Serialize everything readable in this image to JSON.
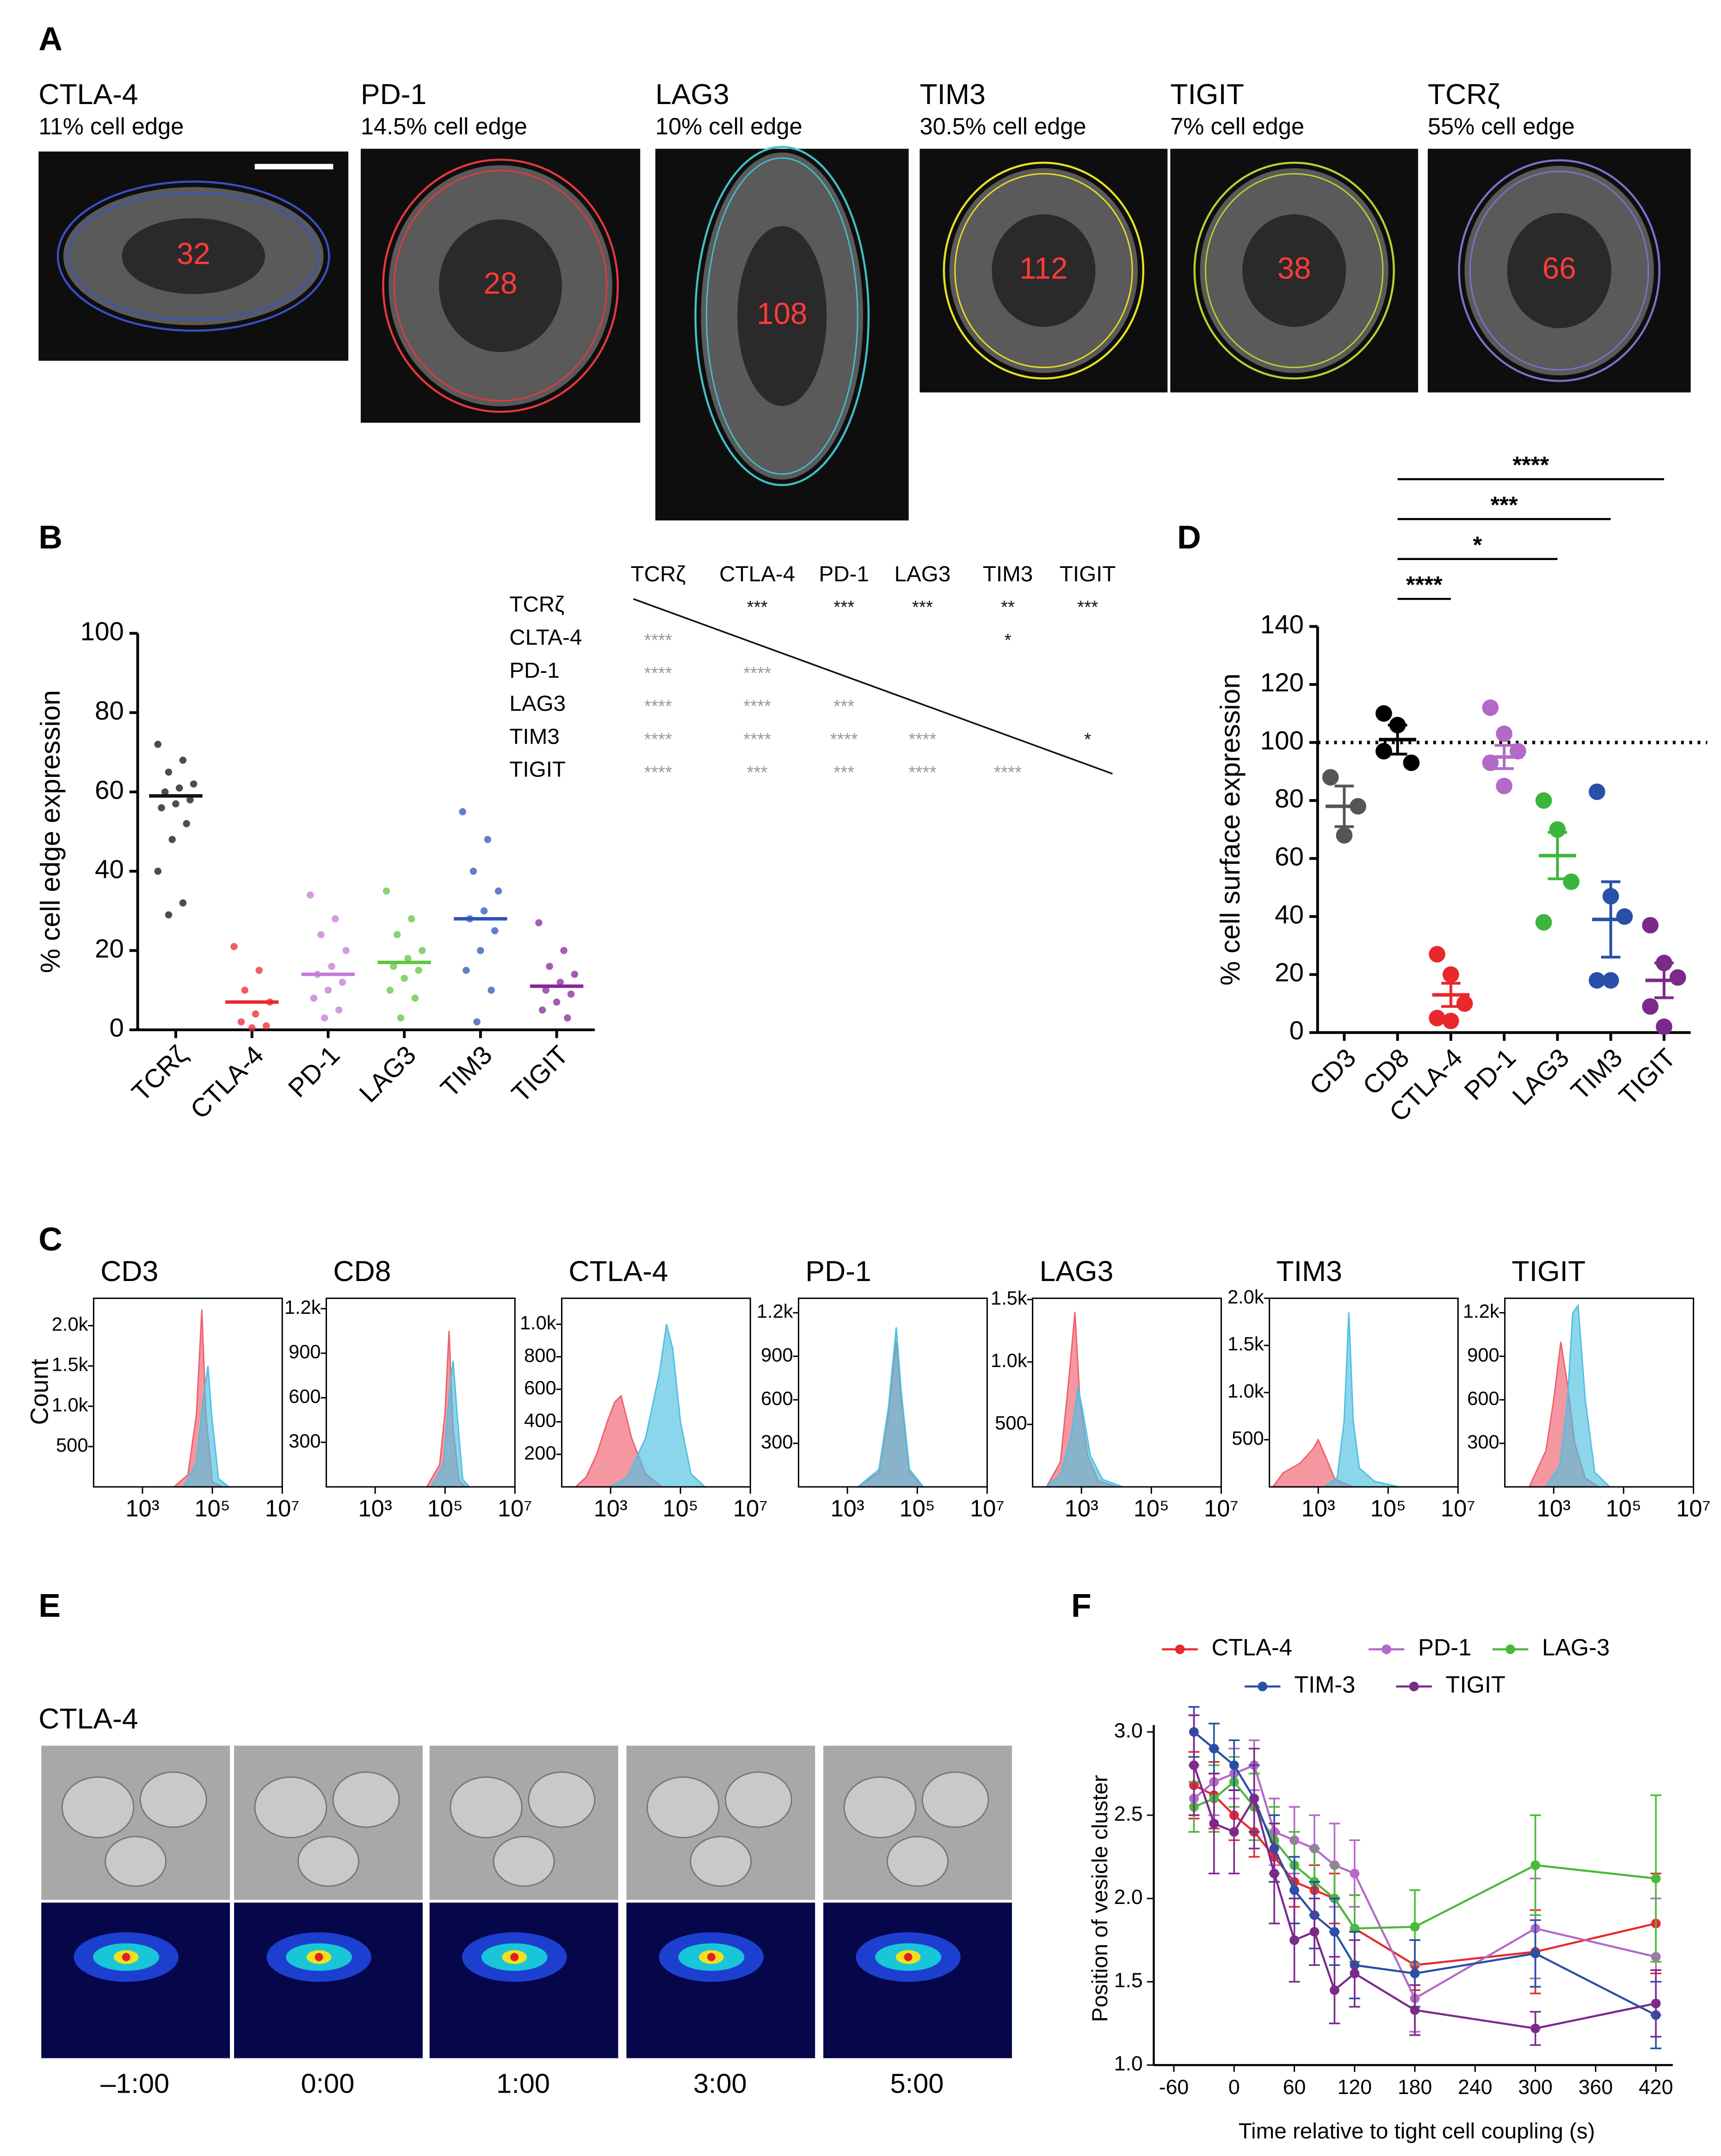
{
  "panel_labels": [
    "A",
    "B",
    "C",
    "D",
    "E",
    "F"
  ],
  "panel_a": {
    "cells": [
      {
        "name": "CTLA-4",
        "edge": "11% cell edge",
        "count": "32"
      },
      {
        "name": "PD-1",
        "edge": "14.5% cell edge",
        "count": "28"
      },
      {
        "name": "LAG3",
        "edge": "10% cell edge",
        "count": "108"
      },
      {
        "name": "TIM3",
        "edge": "30.5% cell edge",
        "count": "112"
      },
      {
        "name": "TIGIT",
        "edge": "7% cell edge",
        "count": "38"
      },
      {
        "name": "TCRζ",
        "edge": "55% cell edge",
        "count": "66"
      }
    ]
  },
  "stats_table": {
    "header": [
      "TCRζ",
      "CTLA-4",
      "PD-1",
      "LAG3",
      "TIM3",
      "TIGIT"
    ],
    "rows": [
      {
        "label": "TCRζ",
        "cells": [
          null,
          "***",
          "***",
          "***",
          "**",
          "***"
        ]
      },
      {
        "label": "CLTA-4",
        "cells": [
          "****",
          null,
          null,
          null,
          "*",
          null
        ]
      },
      {
        "label": "PD-1",
        "cells": [
          "****",
          "****",
          null,
          null,
          null,
          null
        ]
      },
      {
        "label": "LAG3",
        "cells": [
          "****",
          "****",
          "***",
          null,
          null,
          null
        ]
      },
      {
        "label": "TIM3",
        "cells": [
          "****",
          "****",
          "****",
          "****",
          null,
          "*"
        ]
      },
      {
        "label": "TIGIT",
        "cells": [
          "****",
          "***",
          "***",
          "****",
          "****",
          null
        ]
      }
    ]
  },
  "panel_e": {
    "label": "CTLA-4",
    "times": [
      "–1:00",
      "0:00",
      "1:00",
      "3:00",
      "5:00"
    ]
  },
  "chart_data": [
    {
      "type": "dot",
      "ylabel": "% cell edge expression",
      "categories": [
        "TCRζ",
        "CTLA-4",
        "PD-1",
        "LAG3",
        "TIM3",
        "TIGIT"
      ],
      "colors": [
        "#111111",
        "#e8282d",
        "#c47ad4",
        "#62c440",
        "#2c55b5",
        "#86279a"
      ],
      "values": [
        59,
        7,
        14,
        17,
        28,
        11
      ],
      "points": [
        [
          72,
          68,
          65,
          62,
          61,
          60,
          58,
          57,
          56,
          52,
          48,
          40,
          32,
          29
        ],
        [
          21,
          15,
          10,
          7,
          4,
          2,
          1,
          0.5
        ],
        [
          34,
          28,
          24,
          20,
          16,
          14,
          12,
          10,
          8,
          5,
          3
        ],
        [
          35,
          28,
          24,
          20,
          18,
          16,
          15,
          13,
          10,
          8,
          3
        ],
        [
          55,
          48,
          40,
          35,
          30,
          28,
          25,
          20,
          15,
          10,
          2
        ],
        [
          27,
          20,
          16,
          14,
          12,
          10,
          9,
          7,
          5,
          3
        ]
      ],
      "ylim": [
        0,
        100
      ],
      "yticks": [
        0,
        20,
        40,
        60,
        80,
        100
      ]
    },
    {
      "type": "dot",
      "ylabel": "% cell surface expression",
      "categories": [
        "CD3",
        "CD8",
        "CTLA-4",
        "PD-1",
        "LAG3",
        "TIM3",
        "TIGIT"
      ],
      "colors": [
        "#555555",
        "#000000",
        "#e8282d",
        "#b36ac6",
        "#3cb53c",
        "#2a4fa8",
        "#7b2a8a"
      ],
      "values": [
        78,
        101,
        13,
        95,
        61,
        39,
        18
      ],
      "errors": [
        7,
        5,
        4,
        4,
        8,
        13,
        6
      ],
      "points": [
        [
          88,
          68,
          78
        ],
        [
          110,
          106,
          93,
          97
        ],
        [
          27,
          20,
          10,
          5,
          4
        ],
        [
          112,
          103,
          97,
          93,
          85
        ],
        [
          80,
          70,
          52,
          38
        ],
        [
          83,
          47,
          40,
          18,
          18
        ],
        [
          37,
          24,
          19,
          9,
          2
        ]
      ],
      "ylim": [
        0,
        140
      ],
      "yticks": [
        0,
        20,
        40,
        60,
        80,
        100,
        120,
        140
      ],
      "reference_line": 100,
      "comparisons": [
        {
          "from": "CD8",
          "to": "CTLA-4",
          "label": "****"
        },
        {
          "from": "CD8",
          "to": "LAG3",
          "label": "*"
        },
        {
          "from": "CD8",
          "to": "TIM3",
          "label": "***"
        },
        {
          "from": "CD8",
          "to": "TIGIT",
          "label": "****"
        }
      ]
    },
    {
      "type": "histogram",
      "title": "CD3",
      "ylabel": "Count",
      "log_x": true,
      "xlim": [
        40,
        10000000
      ],
      "xticks": [
        {
          "value": 1000,
          "label": "10³"
        },
        {
          "value": 100000,
          "label": "10⁵"
        },
        {
          "value": 10000000,
          "label": "10⁷"
        }
      ],
      "ylim": [
        0,
        2340
      ],
      "yticks": [
        500,
        {
          "value": 1000,
          "label": "1.0k"
        },
        {
          "value": 1500,
          "label": "1.5k"
        },
        {
          "value": 2000,
          "label": "2.0k"
        }
      ],
      "series": [
        {
          "color": "#f0606e",
          "x": [
            8000,
            20000,
            35000,
            50000,
            65000,
            100000,
            200000
          ],
          "values": [
            0,
            150,
            900,
            2200,
            900,
            60,
            0
          ]
        },
        {
          "color": "#4fc0e2",
          "x": [
            15000,
            35000,
            55000,
            75000,
            95000,
            150000,
            300000
          ],
          "values": [
            0,
            300,
            1100,
            1500,
            900,
            100,
            0
          ]
        }
      ]
    },
    {
      "type": "histogram",
      "title": "CD8",
      "log_x": true,
      "xlim": [
        40,
        10000000
      ],
      "xticks": [
        {
          "value": 1000,
          "label": "10³"
        },
        {
          "value": 100000,
          "label": "10⁵"
        },
        {
          "value": 10000000,
          "label": "10⁷"
        }
      ],
      "ylim": [
        0,
        1270
      ],
      "yticks": [
        300,
        600,
        900,
        {
          "value": 1200,
          "label": "1.2k"
        }
      ],
      "series": [
        {
          "color": "#f0606e",
          "x": [
            30000,
            70000,
            100000,
            130000,
            170000,
            250000,
            400000
          ],
          "values": [
            0,
            150,
            500,
            1050,
            400,
            40,
            0
          ]
        },
        {
          "color": "#4fc0e2",
          "x": [
            40000,
            90000,
            130000,
            170000,
            220000,
            320000,
            500000
          ],
          "values": [
            0,
            150,
            600,
            850,
            500,
            50,
            0
          ]
        }
      ]
    },
    {
      "type": "histogram",
      "title": "CTLA-4",
      "log_x": true,
      "xlim": [
        40,
        10000000
      ],
      "xticks": [
        {
          "value": 1000,
          "label": "10³"
        },
        {
          "value": 100000,
          "label": "10⁵"
        },
        {
          "value": 10000000,
          "label": "10⁷"
        }
      ],
      "ylim": [
        0,
        1160
      ],
      "yticks": [
        200,
        400,
        600,
        800,
        {
          "value": 1000,
          "label": "1.0k"
        }
      ],
      "series": [
        {
          "color": "#f0606e",
          "x": [
            100,
            200,
            400,
            800,
            1300,
            2000,
            4000,
            10000,
            30000
          ],
          "values": [
            0,
            60,
            200,
            400,
            520,
            560,
            300,
            80,
            0
          ]
        },
        {
          "color": "#4fc0e2",
          "x": [
            1000,
            3000,
            10000,
            25000,
            40000,
            60000,
            100000,
            200000,
            500000
          ],
          "values": [
            0,
            60,
            300,
            700,
            1000,
            850,
            400,
            80,
            0
          ]
        }
      ]
    },
    {
      "type": "histogram",
      "title": "PD-1",
      "log_x": true,
      "xlim": [
        40,
        10000000
      ],
      "xticks": [
        {
          "value": 1000,
          "label": "10³"
        },
        {
          "value": 100000,
          "label": "10⁵"
        },
        {
          "value": 10000000,
          "label": "10⁷"
        }
      ],
      "ylim": [
        0,
        1300
      ],
      "yticks": [
        300,
        600,
        900,
        {
          "value": 1200,
          "label": "1.2k"
        }
      ],
      "series": [
        {
          "color": "#f0606e",
          "x": [
            2000,
            8000,
            15000,
            25000,
            35000,
            60000,
            150000
          ],
          "values": [
            0,
            100,
            500,
            1000,
            600,
            100,
            0
          ]
        },
        {
          "color": "#4fc0e2",
          "x": [
            2000,
            8000,
            15000,
            25000,
            35000,
            60000,
            150000
          ],
          "values": [
            0,
            120,
            550,
            1100,
            650,
            120,
            0
          ]
        }
      ]
    },
    {
      "type": "histogram",
      "title": "LAG3",
      "log_x": true,
      "xlim": [
        40,
        10000000
      ],
      "xticks": [
        {
          "value": 1000,
          "label": "10³"
        },
        {
          "value": 100000,
          "label": "10⁵"
        },
        {
          "value": 10000000,
          "label": "10⁷"
        }
      ],
      "ylim": [
        0,
        1510
      ],
      "yticks": [
        500,
        {
          "value": 1000,
          "label": "1.0k"
        },
        {
          "value": 1500,
          "label": "1.5k"
        }
      ],
      "series": [
        {
          "color": "#f0606e",
          "x": [
            100,
            250,
            450,
            650,
            900,
            1500,
            3000,
            10000
          ],
          "values": [
            0,
            200,
            900,
            1400,
            700,
            250,
            50,
            0
          ]
        },
        {
          "color": "#4fc0e2",
          "x": [
            100,
            250,
            500,
            800,
            1100,
            1800,
            4000,
            15000
          ],
          "values": [
            0,
            100,
            400,
            800,
            600,
            250,
            60,
            0
          ]
        }
      ]
    },
    {
      "type": "histogram",
      "title": "TIM3",
      "log_x": true,
      "xlim": [
        40,
        10000000
      ],
      "xticks": [
        {
          "value": 1000,
          "label": "10³"
        },
        {
          "value": 100000,
          "label": "10⁵"
        },
        {
          "value": 10000000,
          "label": "10⁷"
        }
      ],
      "ylim": [
        0,
        2000
      ],
      "yticks": [
        500,
        {
          "value": 1000,
          "label": "1.0k"
        },
        {
          "value": 1500,
          "label": "1.5k"
        },
        {
          "value": 2000,
          "label": "2.0k"
        }
      ],
      "series": [
        {
          "color": "#f0606e",
          "x": [
            50,
            100,
            300,
            700,
            1000,
            1500,
            3000,
            10000
          ],
          "values": [
            0,
            150,
            250,
            400,
            500,
            350,
            80,
            0
          ]
        },
        {
          "color": "#4fc0e2",
          "x": [
            1500,
            3500,
            5500,
            7500,
            10000,
            15000,
            40000,
            200000
          ],
          "values": [
            0,
            100,
            700,
            1850,
            700,
            200,
            60,
            0
          ]
        }
      ]
    },
    {
      "type": "histogram",
      "title": "TIGIT",
      "log_x": true,
      "xlim": [
        40,
        10000000
      ],
      "xticks": [
        {
          "value": 1000,
          "label": "10³"
        },
        {
          "value": 100000,
          "label": "10⁵"
        },
        {
          "value": 10000000,
          "label": "10⁷"
        }
      ],
      "ylim": [
        0,
        1300
      ],
      "yticks": [
        300,
        600,
        900,
        {
          "value": 1200,
          "label": "1.2k"
        }
      ],
      "series": [
        {
          "color": "#f0606e",
          "x": [
            200,
            600,
            1000,
            1600,
            2500,
            4000,
            8000,
            20000
          ],
          "values": [
            0,
            250,
            600,
            1000,
            700,
            300,
            60,
            0
          ]
        },
        {
          "color": "#4fc0e2",
          "x": [
            600,
            1500,
            2500,
            3500,
            5000,
            8000,
            15000,
            40000
          ],
          "values": [
            0,
            150,
            600,
            1200,
            1250,
            600,
            100,
            0
          ]
        }
      ]
    },
    {
      "type": "line",
      "xlabel": "Time relative to tight cell coupling (s)",
      "ylabel": "Position of vesicle cluster",
      "legend": "top",
      "xlim": [
        -80,
        430
      ],
      "xticks": [
        -60,
        0,
        60,
        120,
        180,
        240,
        300,
        360,
        420
      ],
      "ylim": [
        1.0,
        3.0
      ],
      "yticks": [
        {
          "value": 1.0,
          "label": "1.0"
        },
        1.5,
        {
          "value": 2.0,
          "label": "2.0"
        },
        2.5,
        {
          "value": 3.0,
          "label": "3.0"
        }
      ],
      "x": [
        -40,
        -20,
        0,
        20,
        40,
        60,
        80,
        100,
        120,
        180,
        300,
        420
      ],
      "series": [
        {
          "name": "CTLA-4",
          "color": "#e8282d",
          "values": [
            2.68,
            2.62,
            2.5,
            2.4,
            2.25,
            2.1,
            2.05,
            2.0,
            1.82,
            1.6,
            1.68,
            1.85
          ],
          "errors": [
            0.2,
            0.2,
            0.15,
            0.15,
            0.15,
            0.15,
            0.15,
            0.15,
            0.2,
            0.15,
            0.25,
            0.3
          ]
        },
        {
          "name": "PD-1",
          "color": "#b36ac6",
          "values": [
            2.6,
            2.7,
            2.75,
            2.8,
            2.4,
            2.35,
            2.3,
            2.2,
            2.15,
            1.4,
            1.82,
            1.65
          ],
          "errors": [
            0.2,
            0.2,
            0.15,
            0.15,
            0.2,
            0.2,
            0.2,
            0.25,
            0.2,
            0.2,
            0.3,
            0.35
          ]
        },
        {
          "name": "LAG-3",
          "color": "#4cb83c",
          "values": [
            2.55,
            2.6,
            2.7,
            2.55,
            2.35,
            2.2,
            2.1,
            2.0,
            1.82,
            1.83,
            2.2,
            2.12
          ],
          "errors": [
            0.15,
            0.2,
            0.15,
            0.2,
            0.2,
            0.2,
            0.2,
            0.2,
            0.2,
            0.22,
            0.3,
            0.5
          ]
        },
        {
          "name": "TIM-3",
          "color": "#2a4fa8",
          "values": [
            3.0,
            2.9,
            2.8,
            2.6,
            2.3,
            2.05,
            1.9,
            1.8,
            1.6,
            1.55,
            1.67,
            1.3
          ],
          "errors": [
            0.15,
            0.15,
            0.15,
            0.2,
            0.2,
            0.2,
            0.2,
            0.2,
            0.2,
            0.2,
            0.2,
            0.2
          ]
        },
        {
          "name": "TIGIT",
          "color": "#7b2a8a",
          "values": [
            2.8,
            2.45,
            2.4,
            2.6,
            2.15,
            1.75,
            1.8,
            1.45,
            1.55,
            1.33,
            1.22,
            1.37
          ],
          "errors": [
            0.3,
            0.3,
            0.25,
            0.3,
            0.3,
            0.25,
            0.2,
            0.2,
            0.2,
            0.15,
            0.1,
            0.2
          ]
        }
      ]
    }
  ]
}
